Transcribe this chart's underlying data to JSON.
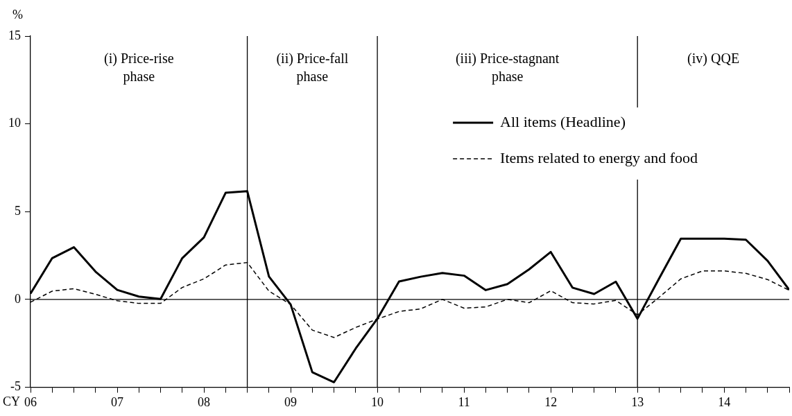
{
  "chart_data": {
    "type": "line",
    "xlabel": "CY",
    "ylabel": "%",
    "x": [
      2006,
      2006.25,
      2006.5,
      2006.75,
      2007,
      2007.25,
      2007.5,
      2007.75,
      2008,
      2008.25,
      2008.5,
      2008.75,
      2009,
      2009.25,
      2009.5,
      2009.75,
      2010,
      2010.25,
      2010.5,
      2010.75,
      2011,
      2011.25,
      2011.5,
      2011.75,
      2012,
      2012.25,
      2012.5,
      2012.75,
      2013,
      2013.25,
      2013.5,
      2013.75,
      2014,
      2014.25,
      2014.5,
      2014.75
    ],
    "series": [
      {
        "name": "All items (Headline)",
        "color": "#000000",
        "line_style": "solid",
        "values": [
          0.33,
          2.35,
          2.97,
          1.58,
          0.54,
          0.16,
          0.02,
          2.35,
          3.53,
          6.07,
          6.16,
          1.3,
          -0.29,
          -4.15,
          -4.72,
          -2.8,
          -1.1,
          1.02,
          1.29,
          1.5,
          1.35,
          0.53,
          0.87,
          1.71,
          2.7,
          0.67,
          0.31,
          1.01,
          -1.1,
          1.2,
          3.46,
          3.46,
          3.46,
          3.4,
          2.2,
          0.54
        ]
      },
      {
        "name": "Items related to energy and food",
        "color": "#000000",
        "line_style": "dashed",
        "values": [
          -0.16,
          0.47,
          0.61,
          0.29,
          -0.08,
          -0.23,
          -0.23,
          0.68,
          1.17,
          1.96,
          2.1,
          0.47,
          -0.29,
          -1.75,
          -2.17,
          -1.6,
          -1.12,
          -0.69,
          -0.54,
          0,
          -0.5,
          -0.43,
          0,
          -0.19,
          0.49,
          -0.19,
          -0.26,
          -0.06,
          -0.88,
          0.12,
          1.17,
          1.62,
          1.62,
          1.48,
          1.13,
          0.52
        ]
      }
    ],
    "xlim": [
      2006,
      2014.75
    ],
    "xticks": [
      {
        "value": 2006,
        "label": "06"
      },
      {
        "value": 2006.25,
        "label": null
      },
      {
        "value": 2006.5,
        "label": null
      },
      {
        "value": 2006.75,
        "label": null
      },
      {
        "value": 2007,
        "label": "07"
      },
      {
        "value": 2007.25,
        "label": null
      },
      {
        "value": 2007.5,
        "label": null
      },
      {
        "value": 2007.75,
        "label": null
      },
      {
        "value": 2008,
        "label": "08"
      },
      {
        "value": 2008.25,
        "label": null
      },
      {
        "value": 2008.5,
        "label": null
      },
      {
        "value": 2008.75,
        "label": null
      },
      {
        "value": 2009,
        "label": "09"
      },
      {
        "value": 2009.25,
        "label": null
      },
      {
        "value": 2009.5,
        "label": null
      },
      {
        "value": 2009.75,
        "label": null
      },
      {
        "value": 2010,
        "label": "10"
      },
      {
        "value": 2010.25,
        "label": null
      },
      {
        "value": 2010.5,
        "label": null
      },
      {
        "value": 2010.75,
        "label": null
      },
      {
        "value": 2011,
        "label": "11"
      },
      {
        "value": 2011.25,
        "label": null
      },
      {
        "value": 2011.5,
        "label": null
      },
      {
        "value": 2011.75,
        "label": null
      },
      {
        "value": 2012,
        "label": "12"
      },
      {
        "value": 2012.25,
        "label": null
      },
      {
        "value": 2012.5,
        "label": null
      },
      {
        "value": 2012.75,
        "label": null
      },
      {
        "value": 2013,
        "label": "13"
      },
      {
        "value": 2013.25,
        "label": null
      },
      {
        "value": 2013.5,
        "label": null
      },
      {
        "value": 2013.75,
        "label": null
      },
      {
        "value": 2014,
        "label": "14"
      },
      {
        "value": 2014.25,
        "label": null
      },
      {
        "value": 2014.5,
        "label": null
      },
      {
        "value": 2014.75,
        "label": null
      }
    ],
    "ylim": [
      -5,
      15
    ],
    "yticks": [
      -5,
      0,
      5,
      10,
      15
    ],
    "ref_lines": [
      {
        "axis": "y",
        "value": 0,
        "color": "#000000"
      },
      {
        "axis": "x",
        "value": 2008.5,
        "color": "#000000"
      },
      {
        "axis": "x",
        "value": 2010,
        "color": "#000000"
      },
      {
        "axis": "x",
        "value": 2013,
        "color": "#000000"
      }
    ],
    "annotations": [
      "(i) Price-rise phase",
      "(ii) Price-fall phase",
      "(iii) Price-stagnant phase",
      "(iv) QQE"
    ],
    "grid": false,
    "legend": "top right",
    "marker": "none"
  }
}
